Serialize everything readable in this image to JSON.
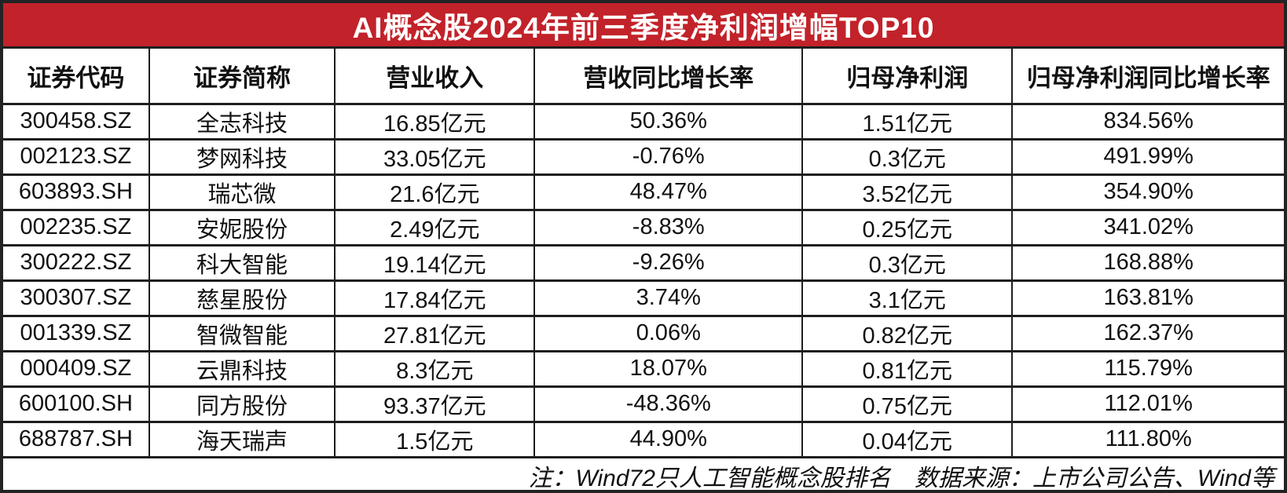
{
  "title": "AI概念股2024年前三季度净利润增幅TOP10",
  "footnote": "注：Wind72只人工智能概念股排名　数据来源：上市公司公告、Wind等",
  "colors": {
    "title_bg": "#c2222a",
    "title_text": "#ffffff",
    "border": "#1e1e1e",
    "cell_bg": "#ffffff"
  },
  "chart_data": {
    "type": "table",
    "title": "AI概念股2024年前三季度净利润增幅TOP10",
    "columns": [
      "证券代码",
      "证券简称",
      "营业收入",
      "营收同比增长率",
      "归母净利润",
      "归母净利润同比增长率"
    ],
    "rows": [
      [
        "300458.SZ",
        "全志科技",
        "16.85亿元",
        "50.36%",
        "1.51亿元",
        "834.56%"
      ],
      [
        "002123.SZ",
        "梦网科技",
        "33.05亿元",
        "-0.76%",
        "0.3亿元",
        "491.99%"
      ],
      [
        "603893.SH",
        "瑞芯微",
        "21.6亿元",
        "48.47%",
        "3.52亿元",
        "354.90%"
      ],
      [
        "002235.SZ",
        "安妮股份",
        "2.49亿元",
        "-8.83%",
        "0.25亿元",
        "341.02%"
      ],
      [
        "300222.SZ",
        "科大智能",
        "19.14亿元",
        "-9.26%",
        "0.3亿元",
        "168.88%"
      ],
      [
        "300307.SZ",
        "慈星股份",
        "17.84亿元",
        "3.74%",
        "3.1亿元",
        "163.81%"
      ],
      [
        "001339.SZ",
        "智微智能",
        "27.81亿元",
        "0.06%",
        "0.82亿元",
        "162.37%"
      ],
      [
        "000409.SZ",
        "云鼎科技",
        "8.3亿元",
        "18.07%",
        "0.81亿元",
        "115.79%"
      ],
      [
        "600100.SH",
        "同方股份",
        "93.37亿元",
        "-48.36%",
        "0.75亿元",
        "112.01%"
      ],
      [
        "688787.SH",
        "海天瑞声",
        "1.5亿元",
        "44.90%",
        "0.04亿元",
        "111.80%"
      ]
    ],
    "column_widths_percent": [
      11.4,
      14.5,
      15.6,
      20.9,
      16.4,
      21.2
    ],
    "notes": "注：Wind72只人工智能概念股排名　数据来源：上市公司公告、Wind等"
  }
}
